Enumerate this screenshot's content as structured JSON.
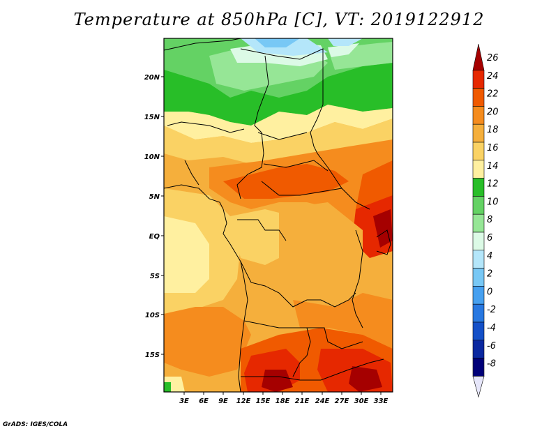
{
  "title": "Temperature at 850hPa [C], VT: 2019122912",
  "credit": "GrADS: IGES/COLA",
  "map": {
    "lat_ticks": [
      "20N",
      "15N",
      "10N",
      "5N",
      "EQ",
      "5S",
      "10S",
      "15S"
    ],
    "lon_ticks": [
      "3E",
      "6E",
      "9E",
      "12E",
      "15E",
      "18E",
      "21E",
      "24E",
      "27E",
      "30E",
      "33E"
    ]
  },
  "colorbar": {
    "labels": [
      "26",
      "24",
      "22",
      "20",
      "18",
      "16",
      "14",
      "12",
      "10",
      "8",
      "6",
      "4",
      "2",
      "0",
      "-2",
      "-4",
      "-6",
      "-8"
    ],
    "colors": [
      "#a50000",
      "#e62800",
      "#f05a00",
      "#f58c1e",
      "#f5af3c",
      "#fad264",
      "#fff0a0",
      "#28be28",
      "#64d264",
      "#96e696",
      "#dcfae6",
      "#b4e6fa",
      "#78c8f5",
      "#46a0f0",
      "#2878e1",
      "#1450c8",
      "#0a28a0",
      "#000078",
      "#e6e6fa"
    ]
  }
}
